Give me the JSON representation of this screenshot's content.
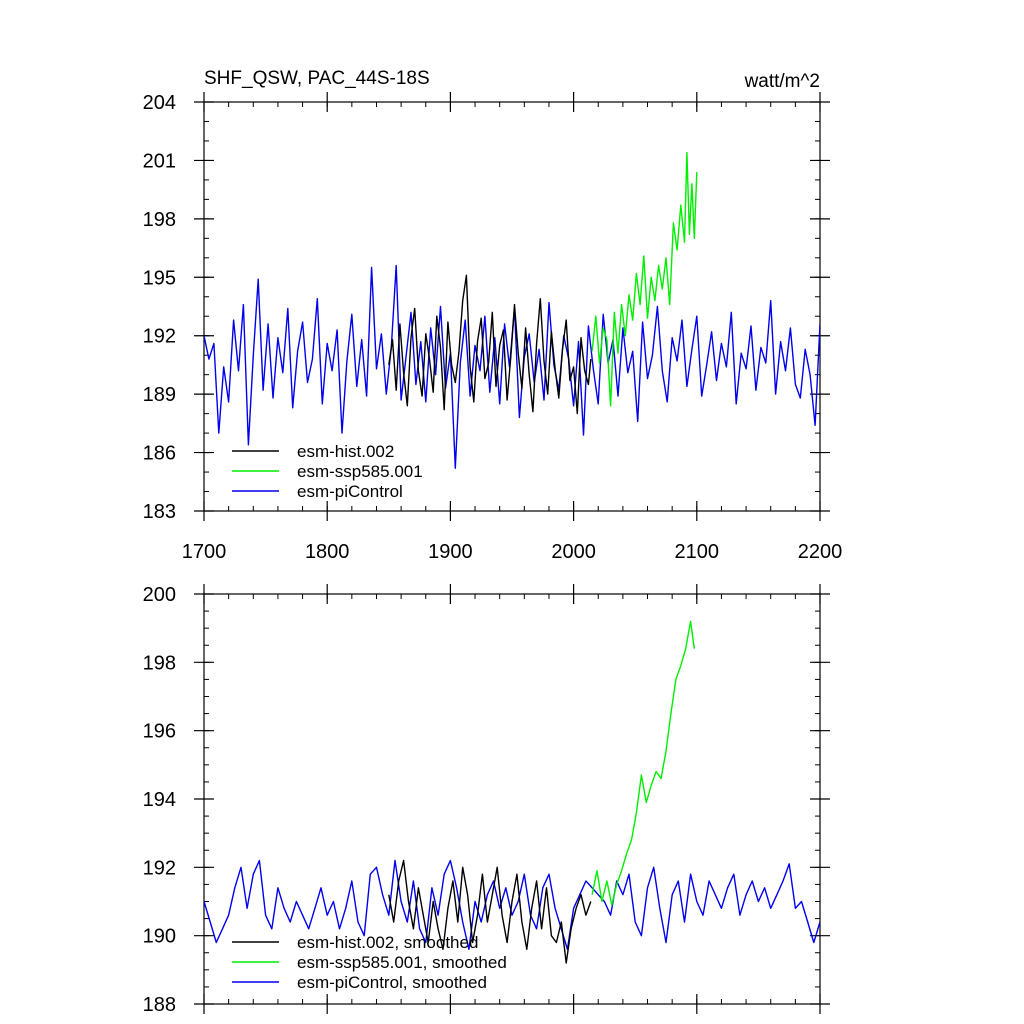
{
  "chart_data": [
    {
      "type": "line",
      "title": "SHF_QSW, PAC_44S-18S",
      "units": "watt/m^2",
      "xlim": [
        1700,
        2200
      ],
      "ylim": [
        183,
        204
      ],
      "xticks": [
        "1700",
        "1800",
        "1900",
        "2000",
        "2100",
        "2200"
      ],
      "yticks": [
        "183",
        "186",
        "189",
        "192",
        "195",
        "198",
        "201",
        "204"
      ],
      "legend_position": "bottom-left",
      "series": [
        {
          "name": "esm-hist.002",
          "color": "#000000",
          "x": [
            1850,
            1853,
            1856,
            1859,
            1862,
            1865,
            1868,
            1871,
            1874,
            1877,
            1880,
            1883,
            1886,
            1889,
            1892,
            1895,
            1898,
            1901,
            1904,
            1907,
            1910,
            1913,
            1916,
            1919,
            1922,
            1925,
            1928,
            1931,
            1934,
            1937,
            1940,
            1943,
            1946,
            1949,
            1952,
            1955,
            1958,
            1961,
            1964,
            1967,
            1970,
            1973,
            1976,
            1979,
            1982,
            1985,
            1988,
            1991,
            1994,
            1997,
            2000,
            2003,
            2006,
            2009,
            2012,
            2014
          ],
          "y": [
            190.5,
            191.8,
            189.2,
            192.6,
            190.1,
            188.4,
            191.9,
            193.4,
            190.2,
            188.9,
            192.1,
            190.8,
            189.1,
            193.0,
            191.4,
            188.2,
            192.7,
            190.5,
            189.6,
            191.2,
            193.8,
            195.1,
            190.4,
            188.6,
            191.7,
            192.9,
            189.8,
            190.6,
            193.2,
            189.4,
            191.5,
            192.3,
            188.7,
            190.9,
            193.6,
            191.1,
            189.3,
            192.4,
            190.0,
            188.1,
            191.6,
            193.9,
            190.7,
            189.0,
            192.2,
            190.3,
            188.8,
            191.3,
            192.8,
            189.7,
            190.4,
            188.0,
            191.9,
            190.2,
            189.5,
            190.8
          ]
        },
        {
          "name": "esm-ssp585.001",
          "color": "#00ee00",
          "x": [
            2015,
            2018,
            2021,
            2024,
            2027,
            2030,
            2033,
            2036,
            2039,
            2042,
            2045,
            2048,
            2051,
            2054,
            2057,
            2060,
            2063,
            2066,
            2069,
            2072,
            2075,
            2078,
            2081,
            2084,
            2087,
            2090,
            2092,
            2094,
            2096,
            2098,
            2100
          ],
          "y": [
            191.2,
            193.0,
            190.6,
            192.4,
            191.8,
            188.4,
            193.2,
            191.1,
            193.6,
            192.0,
            194.1,
            192.8,
            195.2,
            193.6,
            196.1,
            192.9,
            195.0,
            193.8,
            195.6,
            194.4,
            196.0,
            193.6,
            197.8,
            196.4,
            198.7,
            196.8,
            201.4,
            197.2,
            199.8,
            197.0,
            200.4
          ]
        },
        {
          "name": "esm-piControl",
          "color": "#0000ee",
          "x": [
            1700,
            1704,
            1708,
            1712,
            1716,
            1720,
            1724,
            1728,
            1732,
            1736,
            1740,
            1744,
            1748,
            1752,
            1756,
            1760,
            1764,
            1768,
            1772,
            1776,
            1780,
            1784,
            1788,
            1792,
            1796,
            1800,
            1804,
            1808,
            1812,
            1816,
            1820,
            1824,
            1828,
            1832,
            1836,
            1840,
            1844,
            1848,
            1852,
            1856,
            1860,
            1864,
            1868,
            1872,
            1876,
            1880,
            1884,
            1888,
            1892,
            1896,
            1900,
            1904,
            1908,
            1912,
            1916,
            1920,
            1924,
            1928,
            1932,
            1936,
            1940,
            1944,
            1948,
            1952,
            1956,
            1960,
            1964,
            1968,
            1972,
            1976,
            1980,
            1984,
            1988,
            1992,
            1996,
            2000,
            2004,
            2008,
            2012,
            2016,
            2020,
            2024,
            2028,
            2032,
            2036,
            2040,
            2044,
            2048,
            2052,
            2056,
            2060,
            2064,
            2068,
            2072,
            2076,
            2080,
            2084,
            2088,
            2092,
            2096,
            2100,
            2104,
            2108,
            2112,
            2116,
            2120,
            2124,
            2128,
            2132,
            2136,
            2140,
            2144,
            2148,
            2152,
            2156,
            2160,
            2164,
            2168,
            2172,
            2176,
            2180,
            2184,
            2188,
            2192,
            2196,
            2200
          ],
          "y": [
            192.0,
            190.8,
            191.6,
            187.0,
            190.4,
            188.6,
            192.8,
            190.2,
            193.6,
            186.4,
            191.0,
            194.9,
            189.2,
            192.6,
            188.8,
            191.9,
            190.1,
            193.4,
            188.3,
            191.2,
            192.7,
            189.6,
            190.8,
            193.9,
            188.5,
            191.6,
            190.2,
            192.3,
            187.0,
            190.7,
            193.1,
            189.4,
            191.8,
            188.9,
            195.5,
            190.3,
            192.1,
            189.0,
            191.4,
            195.6,
            188.7,
            190.9,
            193.2,
            189.5,
            191.7,
            188.6,
            192.4,
            190.0,
            193.5,
            189.3,
            191.1,
            185.2,
            190.6,
            192.8,
            188.9,
            191.5,
            190.2,
            193.0,
            189.1,
            191.9,
            188.5,
            192.6,
            190.4,
            193.4,
            187.8,
            190.9,
            192.1,
            189.6,
            191.3,
            188.7,
            193.7,
            190.5,
            189.2,
            192.0,
            190.8,
            188.4,
            191.7,
            186.9,
            192.5,
            190.3,
            188.5,
            193.1,
            190.6,
            191.8,
            188.9,
            192.4,
            190.1,
            191.2,
            187.6,
            192.7,
            189.8,
            191.0,
            193.5,
            190.2,
            188.6,
            191.9,
            190.7,
            192.8,
            189.4,
            191.3,
            193.0,
            188.9,
            190.5,
            192.2,
            189.7,
            191.6,
            190.4,
            193.2,
            188.5,
            191.1,
            190.3,
            192.5,
            189.2,
            191.4,
            190.6,
            193.8,
            189.0,
            191.7,
            190.2,
            192.4,
            189.5,
            188.8,
            191.3,
            190.0,
            187.4,
            192.6
          ]
        }
      ]
    },
    {
      "type": "line",
      "title": "",
      "units": "",
      "xlim": [
        1700,
        2200
      ],
      "ylim": [
        188,
        200
      ],
      "xticks": [],
      "yticks": [
        "188",
        "190",
        "192",
        "194",
        "196",
        "198",
        "200"
      ],
      "legend_position": "bottom-left",
      "series": [
        {
          "name": "esm-hist.002, smoothed",
          "color": "#000000",
          "x": [
            1850,
            1854,
            1858,
            1862,
            1866,
            1870,
            1874,
            1878,
            1882,
            1886,
            1890,
            1894,
            1898,
            1902,
            1906,
            1910,
            1914,
            1918,
            1922,
            1926,
            1930,
            1934,
            1938,
            1942,
            1946,
            1950,
            1954,
            1958,
            1962,
            1966,
            1970,
            1974,
            1978,
            1982,
            1986,
            1990,
            1994,
            1998,
            2002,
            2006,
            2010,
            2014
          ],
          "y": [
            191.2,
            190.4,
            191.6,
            192.2,
            191.0,
            190.2,
            191.4,
            190.6,
            189.8,
            191.0,
            190.2,
            189.6,
            190.8,
            191.6,
            190.4,
            192.0,
            191.2,
            189.8,
            190.6,
            191.8,
            190.4,
            191.2,
            192.0,
            190.6,
            189.8,
            191.0,
            191.8,
            190.4,
            189.6,
            190.8,
            191.6,
            190.2,
            191.4,
            190.0,
            189.8,
            190.4,
            189.2,
            190.2,
            190.8,
            191.2,
            190.6,
            191.0
          ]
        },
        {
          "name": "esm-ssp585.001, smoothed",
          "color": "#00ee00",
          "x": [
            2015,
            2019,
            2023,
            2027,
            2031,
            2035,
            2039,
            2043,
            2047,
            2051,
            2055,
            2059,
            2063,
            2067,
            2071,
            2075,
            2079,
            2083,
            2087,
            2091,
            2095,
            2098
          ],
          "y": [
            191.2,
            191.9,
            191.0,
            191.6,
            190.9,
            191.5,
            191.9,
            192.4,
            192.8,
            193.6,
            194.7,
            193.9,
            194.4,
            194.8,
            194.6,
            195.4,
            196.5,
            197.5,
            197.9,
            198.4,
            199.2,
            198.4
          ]
        },
        {
          "name": "esm-piControl, smoothed",
          "color": "#0000ee",
          "x": [
            1700,
            1705,
            1710,
            1715,
            1720,
            1725,
            1730,
            1735,
            1740,
            1745,
            1750,
            1755,
            1760,
            1765,
            1770,
            1775,
            1780,
            1785,
            1790,
            1795,
            1800,
            1805,
            1810,
            1815,
            1820,
            1825,
            1830,
            1835,
            1840,
            1845,
            1850,
            1855,
            1860,
            1865,
            1870,
            1875,
            1880,
            1885,
            1890,
            1895,
            1900,
            1905,
            1910,
            1915,
            1920,
            1925,
            1930,
            1935,
            1940,
            1945,
            1950,
            1955,
            1960,
            1965,
            1970,
            1975,
            1980,
            1985,
            1990,
            1995,
            2000,
            2005,
            2010,
            2015,
            2020,
            2025,
            2030,
            2035,
            2040,
            2045,
            2050,
            2055,
            2060,
            2065,
            2070,
            2075,
            2080,
            2085,
            2090,
            2095,
            2100,
            2105,
            2110,
            2115,
            2120,
            2125,
            2130,
            2135,
            2140,
            2145,
            2150,
            2155,
            2160,
            2165,
            2170,
            2175,
            2180,
            2185,
            2190,
            2195,
            2200
          ],
          "y": [
            191.0,
            190.4,
            189.8,
            190.2,
            190.6,
            191.4,
            192.0,
            190.8,
            191.8,
            192.2,
            190.6,
            190.2,
            191.4,
            190.8,
            190.4,
            191.0,
            190.6,
            190.2,
            190.8,
            191.4,
            190.6,
            191.0,
            190.2,
            190.8,
            191.6,
            190.4,
            190.0,
            191.8,
            192.0,
            191.2,
            190.6,
            192.2,
            191.0,
            190.4,
            191.6,
            190.2,
            189.8,
            191.4,
            190.6,
            191.8,
            192.2,
            191.4,
            190.4,
            189.6,
            191.0,
            190.4,
            191.2,
            191.6,
            190.8,
            191.4,
            190.6,
            191.0,
            191.8,
            190.6,
            190.2,
            191.4,
            191.8,
            190.8,
            190.2,
            189.6,
            190.8,
            191.2,
            191.6,
            191.4,
            191.2,
            191.0,
            190.6,
            191.6,
            191.2,
            191.8,
            190.4,
            190.0,
            191.4,
            192.0,
            190.8,
            189.8,
            191.2,
            191.6,
            190.4,
            191.8,
            191.0,
            190.6,
            191.6,
            191.2,
            190.8,
            191.4,
            191.8,
            190.6,
            191.2,
            191.6,
            191.0,
            191.4,
            190.8,
            191.2,
            191.6,
            192.1,
            190.8,
            191.0,
            190.4,
            189.8,
            190.4
          ]
        }
      ]
    }
  ]
}
